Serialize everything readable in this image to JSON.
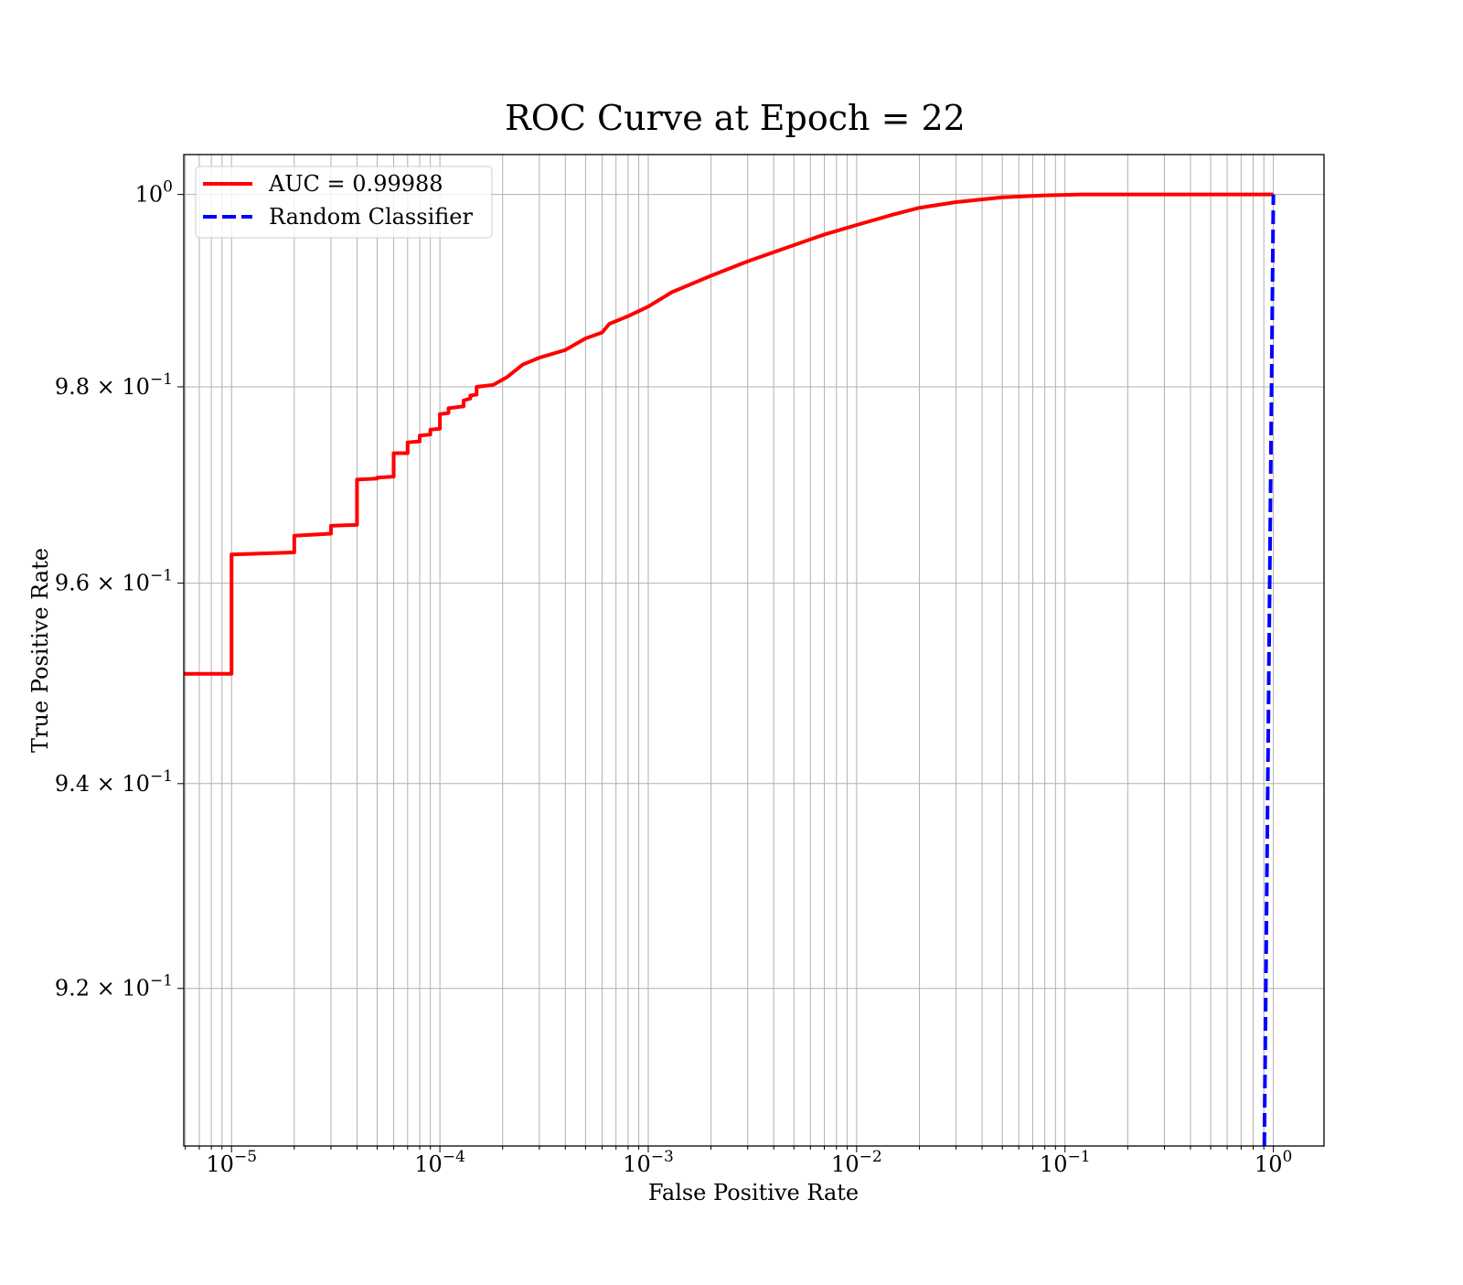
{
  "chart_data": {
    "type": "line",
    "title": "ROC Curve at Epoch = 22",
    "xlabel": "False Positive Rate",
    "ylabel": "True Positive Rate",
    "xscale": "log",
    "yscale": "log",
    "xlim": [
      5.9e-06,
      1.75
    ],
    "ylim": [
      0.9049,
      1.0042
    ],
    "grid": "both major and minor",
    "legend_position": "top-left",
    "x_ticks": [
      {
        "value": 1e-05,
        "mantissa": "10",
        "exponent": "−5"
      },
      {
        "value": 0.0001,
        "mantissa": "10",
        "exponent": "−4"
      },
      {
        "value": 0.001,
        "mantissa": "10",
        "exponent": "−3"
      },
      {
        "value": 0.01,
        "mantissa": "10",
        "exponent": "−2"
      },
      {
        "value": 0.1,
        "mantissa": "10",
        "exponent": "−1"
      },
      {
        "value": 1,
        "mantissa": "10",
        "exponent": "0"
      }
    ],
    "y_ticks": [
      {
        "value": 0.92,
        "mantissa": "9.2 × 10",
        "exponent": "−1"
      },
      {
        "value": 0.94,
        "mantissa": "9.4 × 10",
        "exponent": "−1"
      },
      {
        "value": 0.96,
        "mantissa": "9.6 × 10",
        "exponent": "−1"
      },
      {
        "value": 0.98,
        "mantissa": "9.8 × 10",
        "exponent": "−1"
      },
      {
        "value": 1.0,
        "mantissa": "10",
        "exponent": "0"
      }
    ],
    "series": [
      {
        "name": "AUC = 0.99988",
        "color": "#ff0000",
        "style": "solid",
        "points": [
          [
            5.9e-06,
            0.9509
          ],
          [
            1e-05,
            0.9509
          ],
          [
            1e-05,
            0.9629
          ],
          [
            2e-05,
            0.9631
          ],
          [
            2e-05,
            0.9648
          ],
          [
            3e-05,
            0.965
          ],
          [
            3e-05,
            0.9658
          ],
          [
            4e-05,
            0.9659
          ],
          [
            4e-05,
            0.9705
          ],
          [
            5e-05,
            0.9706
          ],
          [
            5e-05,
            0.9707
          ],
          [
            6e-05,
            0.9708
          ],
          [
            6e-05,
            0.9732
          ],
          [
            7e-05,
            0.9732
          ],
          [
            7e-05,
            0.9743
          ],
          [
            8e-05,
            0.9744
          ],
          [
            8e-05,
            0.975
          ],
          [
            9e-05,
            0.9751
          ],
          [
            9e-05,
            0.9756
          ],
          [
            0.0001,
            0.9757
          ],
          [
            0.0001,
            0.9772
          ],
          [
            0.00011,
            0.9773
          ],
          [
            0.00011,
            0.9778
          ],
          [
            0.00013,
            0.978
          ],
          [
            0.00013,
            0.9786
          ],
          [
            0.00014,
            0.9788
          ],
          [
            0.00014,
            0.9791
          ],
          [
            0.00015,
            0.9792
          ],
          [
            0.00015,
            0.98
          ],
          [
            0.00018,
            0.9802
          ],
          [
            0.00021,
            0.981
          ],
          [
            0.00025,
            0.9823
          ],
          [
            0.0003,
            0.983
          ],
          [
            0.0004,
            0.9838
          ],
          [
            0.0005,
            0.985
          ],
          [
            0.0006,
            0.9856
          ],
          [
            0.00065,
            0.9865
          ],
          [
            0.0008,
            0.9873
          ],
          [
            0.001,
            0.9883
          ],
          [
            0.0013,
            0.9898
          ],
          [
            0.002,
            0.9915
          ],
          [
            0.003,
            0.993
          ],
          [
            0.005,
            0.9947
          ],
          [
            0.007,
            0.9958
          ],
          [
            0.01,
            0.9968
          ],
          [
            0.015,
            0.9979
          ],
          [
            0.02,
            0.9986
          ],
          [
            0.03,
            0.9992
          ],
          [
            0.05,
            0.9997
          ],
          [
            0.08,
            0.9999
          ],
          [
            0.12,
            1.0
          ],
          [
            1.0,
            1.0
          ]
        ]
      },
      {
        "name": "Random Classifier",
        "color": "#0000ff",
        "style": "dashed",
        "points": [
          [
            0.9049,
            0.9049
          ],
          [
            0.92,
            0.92
          ],
          [
            0.94,
            0.94
          ],
          [
            0.96,
            0.96
          ],
          [
            0.98,
            0.98
          ],
          [
            1.0,
            1.0
          ]
        ]
      }
    ]
  }
}
